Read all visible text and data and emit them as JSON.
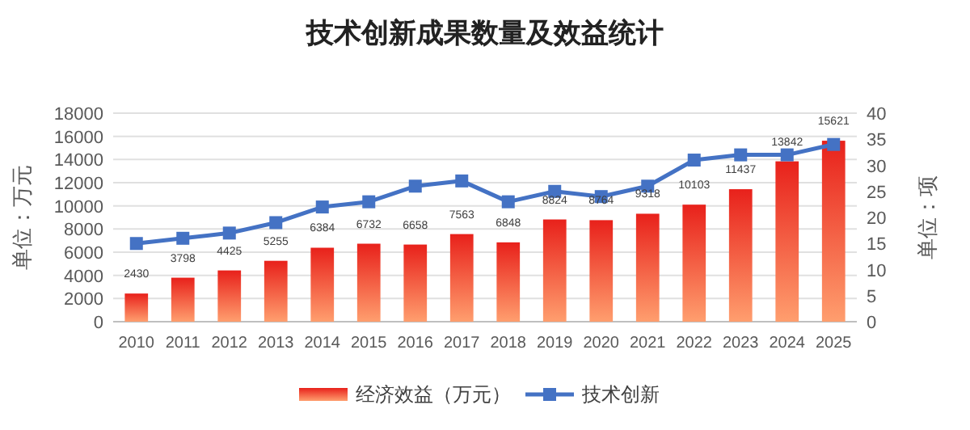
{
  "chart_data": {
    "type": "bar",
    "title": "技术创新成果数量及效益统计",
    "ylabel": "单位：万元",
    "y2label": "单位：项",
    "categories": [
      "2010",
      "2011",
      "2012",
      "2013",
      "2014",
      "2015",
      "2016",
      "2017",
      "2018",
      "2019",
      "2020",
      "2021",
      "2022",
      "2023",
      "2024",
      "2025"
    ],
    "series": [
      {
        "name": "经济效益（万元）",
        "color": "#e8211b",
        "values": [
          2430,
          3798,
          4425,
          5255,
          6384,
          6732,
          6658,
          7563,
          6848,
          8824,
          8764,
          9318,
          10103,
          11437,
          13842,
          15621
        ],
        "value_labels": [
          "2430",
          "3798",
          "4425",
          "5255",
          "6384",
          "6732",
          "6658",
          "7563",
          "6848",
          "8824",
          "8764",
          "9318",
          "10103",
          "11437",
          "13842",
          "15621"
        ]
      },
      {
        "name": "技术创新",
        "type": "line",
        "axis": "y2",
        "color": "#4472c4",
        "marker": "square",
        "values": [
          15,
          16,
          17,
          19,
          22,
          23,
          26,
          27,
          23,
          25,
          24,
          26,
          31,
          32,
          32,
          34
        ]
      }
    ],
    "ylim": [
      0,
      18000
    ],
    "yticks": [
      0,
      2000,
      4000,
      6000,
      8000,
      10000,
      12000,
      14000,
      16000,
      18000
    ],
    "y2lim": [
      0,
      40
    ],
    "y2ticks": [
      0,
      5,
      10,
      15,
      20,
      25,
      30,
      35,
      40
    ],
    "grid": "y",
    "legend": "bottom"
  }
}
